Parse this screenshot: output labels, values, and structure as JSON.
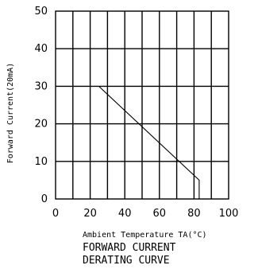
{
  "chart_data": {
    "type": "line",
    "title": "",
    "xlabel": "Ambient Temperature TA(°C)",
    "ylabel": "Forward Current(20mA)",
    "caption_lines": [
      "FORWARD CURRENT",
      "DERATING CURVE"
    ],
    "xlim": [
      0,
      100
    ],
    "ylim": [
      0,
      50
    ],
    "x_ticks": [
      0,
      20,
      40,
      60,
      80,
      100
    ],
    "y_ticks": [
      0,
      10,
      20,
      30,
      40,
      50
    ],
    "grid": true,
    "grid_x_step": 10,
    "grid_y_step": 10,
    "series": [
      {
        "x": [
          25,
          83,
          83
        ],
        "y": [
          30,
          5,
          0
        ]
      }
    ]
  }
}
